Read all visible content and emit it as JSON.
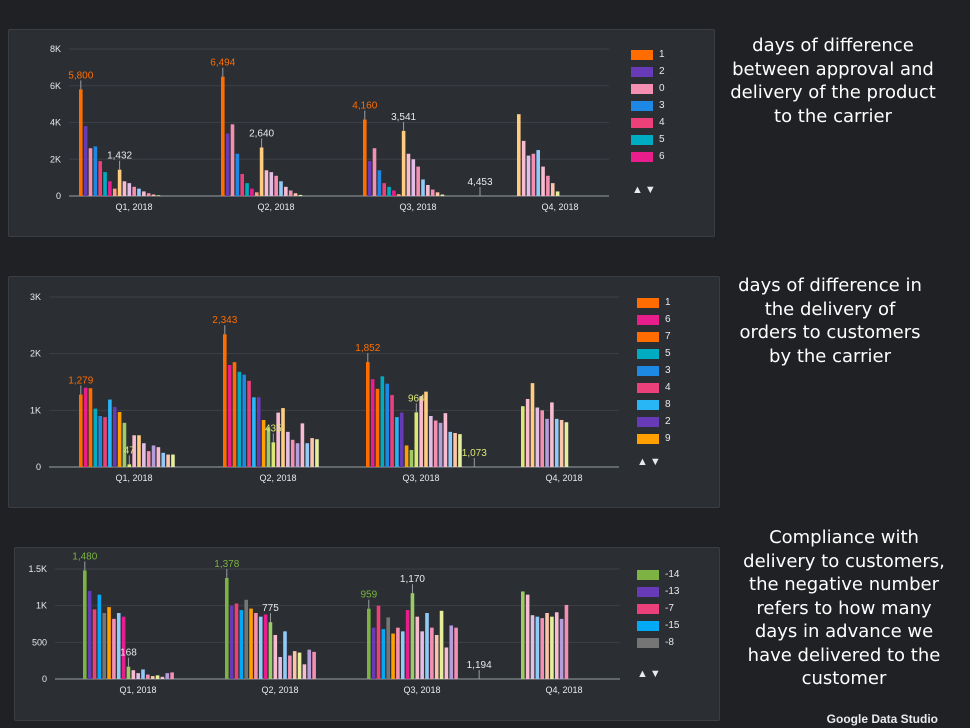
{
  "chart_data": [
    {
      "type": "bar",
      "categories": [
        "Q1, 2018",
        "Q2, 2018",
        "Q3, 2018",
        "Q4, 2018"
      ],
      "yticks": [
        "0",
        "2K",
        "4K",
        "6K",
        "8K"
      ],
      "ylim": [
        0,
        8000
      ],
      "legend_position": "right",
      "grid": true,
      "series": [
        {
          "name": "1",
          "color": "#ff6d00",
          "values": [
            5800,
            6494,
            4160,
            null
          ]
        },
        {
          "name": "2",
          "color": "#673ab7",
          "values": [
            3800,
            3400,
            1900,
            null
          ]
        },
        {
          "name": "0",
          "color": "#f48fb1",
          "values": [
            2600,
            3900,
            2600,
            null
          ]
        },
        {
          "name": "3",
          "color": "#1e88e5",
          "values": [
            2700,
            2300,
            1400,
            null
          ]
        },
        {
          "name": "4",
          "color": "#ec407a",
          "values": [
            1900,
            1200,
            700,
            null
          ]
        },
        {
          "name": "5",
          "color": "#00acc1",
          "values": [
            1300,
            700,
            500,
            null
          ]
        },
        {
          "name": "6",
          "color": "#e91e8c",
          "values": [
            800,
            400,
            300,
            null
          ]
        }
      ],
      "extra_bars": [
        {
          "color": "#ff9e80",
          "values": [
            400,
            200,
            100,
            null
          ]
        },
        {
          "color": "#ffcc80",
          "values": [
            1432,
            2640,
            3541,
            4453
          ]
        },
        {
          "color": "#f8bbd0",
          "values": [
            800,
            1400,
            2300,
            3000
          ]
        },
        {
          "color": "#e1bee7",
          "values": [
            700,
            1300,
            2000,
            2200
          ]
        },
        {
          "color": "#f48fb1",
          "values": [
            500,
            1100,
            1600,
            2300
          ]
        },
        {
          "color": "#90caf9",
          "values": [
            400,
            800,
            900,
            2500
          ]
        },
        {
          "color": "#f8bbd0",
          "values": [
            250,
            500,
            600,
            1600
          ]
        },
        {
          "color": "#f48fb1",
          "values": [
            150,
            300,
            350,
            1100
          ]
        },
        {
          "color": "#fbc4ab",
          "values": [
            80,
            150,
            200,
            700
          ]
        },
        {
          "color": "#e6ee9c",
          "values": [
            40,
            60,
            80,
            250
          ]
        }
      ],
      "data_labels": [
        {
          "text": "5,800",
          "color": "#ff6d00"
        },
        {
          "text": "1,432",
          "color": "#e8eaed"
        },
        {
          "text": "6,494",
          "color": "#ff6d00"
        },
        {
          "text": "2,640",
          "color": "#e8eaed"
        },
        {
          "text": "4,160",
          "color": "#ff6d00"
        },
        {
          "text": "3,541",
          "color": "#e8eaed"
        },
        {
          "text": "4,453",
          "color": "#e8eaed"
        }
      ]
    },
    {
      "type": "bar",
      "categories": [
        "Q1, 2018",
        "Q2, 2018",
        "Q3, 2018",
        "Q4, 2018"
      ],
      "yticks": [
        "0",
        "1K",
        "2K",
        "3K"
      ],
      "ylim": [
        0,
        3000
      ],
      "legend_position": "right",
      "grid": true,
      "series": [
        {
          "name": "1",
          "color": "#ff6d00",
          "values": [
            1279,
            2343,
            1852,
            null
          ]
        },
        {
          "name": "6",
          "color": "#e91e8c",
          "values": [
            1400,
            1800,
            1550,
            null
          ]
        },
        {
          "name": "7",
          "color": "#ff6d00",
          "values": [
            1390,
            1850,
            1380,
            null
          ]
        },
        {
          "name": "5",
          "color": "#00acc1",
          "values": [
            1030,
            1680,
            1600,
            null
          ]
        },
        {
          "name": "3",
          "color": "#1e88e5",
          "values": [
            900,
            1630,
            1470,
            null
          ]
        },
        {
          "name": "4",
          "color": "#ec407a",
          "values": [
            880,
            1520,
            1270,
            null
          ]
        },
        {
          "name": "8",
          "color": "#29b6f6",
          "values": [
            1190,
            1230,
            880,
            null
          ]
        },
        {
          "name": "2",
          "color": "#673ab7",
          "values": [
            1060,
            1230,
            960,
            null
          ]
        },
        {
          "name": "9",
          "color": "#ffa000",
          "values": [
            970,
            830,
            380,
            null
          ]
        }
      ],
      "extra_bars": [
        {
          "color": "#9ccc65",
          "values": [
            780,
            700,
            300,
            null
          ]
        },
        {
          "color": "#dce775",
          "values": [
            47,
            435,
            964,
            1073
          ]
        },
        {
          "color": "#f8bbd0",
          "values": [
            560,
            960,
            1250,
            1200
          ]
        },
        {
          "color": "#ffcc80",
          "values": [
            560,
            1040,
            1330,
            1480
          ]
        },
        {
          "color": "#e1bee7",
          "values": [
            420,
            620,
            900,
            1050
          ]
        },
        {
          "color": "#f48fb1",
          "values": [
            280,
            480,
            820,
            1000
          ]
        },
        {
          "color": "#b39ddb",
          "values": [
            380,
            420,
            780,
            850
          ]
        },
        {
          "color": "#f8bbd0",
          "values": [
            350,
            770,
            950,
            1140
          ]
        },
        {
          "color": "#90caf9",
          "values": [
            250,
            420,
            620,
            850
          ]
        },
        {
          "color": "#fbc4ab",
          "values": [
            220,
            510,
            600,
            830
          ]
        },
        {
          "color": "#e6ee9c",
          "values": [
            220,
            490,
            580,
            790
          ]
        }
      ],
      "data_labels": [
        {
          "text": "1,279",
          "color": "#ff6d00"
        },
        {
          "text": "47",
          "color": "#dce775"
        },
        {
          "text": "2,343",
          "color": "#ff6d00"
        },
        {
          "text": "435",
          "color": "#dce775"
        },
        {
          "text": "1,852",
          "color": "#ff6d00"
        },
        {
          "text": "964",
          "color": "#dce775"
        },
        {
          "text": "1,073",
          "color": "#dce775"
        }
      ]
    },
    {
      "type": "bar",
      "categories": [
        "Q1, 2018",
        "Q2, 2018",
        "Q3, 2018",
        "Q4, 2018"
      ],
      "yticks": [
        "0",
        "500",
        "1K",
        "1.5K"
      ],
      "ylim": [
        0,
        1500
      ],
      "legend_position": "right",
      "grid": true,
      "series": [
        {
          "name": "-14",
          "color": "#7cb342",
          "values": [
            1480,
            1378,
            959,
            null
          ]
        },
        {
          "name": "-13",
          "color": "#673ab7",
          "values": [
            1200,
            1000,
            700,
            null
          ]
        },
        {
          "name": "-7",
          "color": "#ec407a",
          "values": [
            950,
            1030,
            1000,
            null
          ]
        },
        {
          "name": "-15",
          "color": "#03a9f4",
          "values": [
            1150,
            940,
            680,
            null
          ]
        },
        {
          "name": "-8",
          "color": "#757575",
          "values": [
            900,
            1080,
            840,
            null
          ]
        }
      ],
      "extra_bars": [
        {
          "color": "#ffa000",
          "values": [
            980,
            960,
            620,
            null
          ]
        },
        {
          "color": "#f48fb1",
          "values": [
            820,
            900,
            700,
            null
          ]
        },
        {
          "color": "#90caf9",
          "values": [
            900,
            850,
            650,
            null
          ]
        },
        {
          "color": "#e91e8c",
          "values": [
            850,
            880,
            940,
            null
          ]
        },
        {
          "color": "#9ccc65",
          "values": [
            168,
            775,
            1170,
            1194
          ]
        },
        {
          "color": "#f8bbd0",
          "values": [
            120,
            600,
            850,
            1150
          ]
        },
        {
          "color": "#e1bee7",
          "values": [
            80,
            300,
            650,
            870
          ]
        },
        {
          "color": "#90caf9",
          "values": [
            130,
            650,
            900,
            850
          ]
        },
        {
          "color": "#f48fb1",
          "values": [
            60,
            320,
            700,
            830
          ]
        },
        {
          "color": "#fbc4ab",
          "values": [
            40,
            380,
            600,
            900
          ]
        },
        {
          "color": "#e6ee9c",
          "values": [
            50,
            360,
            930,
            850
          ]
        },
        {
          "color": "#f8bbd0",
          "values": [
            30,
            200,
            430,
            910
          ]
        },
        {
          "color": "#b39ddb",
          "values": [
            80,
            400,
            730,
            820
          ]
        },
        {
          "color": "#f48fb1",
          "values": [
            90,
            370,
            700,
            1010
          ]
        }
      ],
      "data_labels": [
        {
          "text": "1,480",
          "color": "#7cb342"
        },
        {
          "text": "168",
          "color": "#e8eaed"
        },
        {
          "text": "1,378",
          "color": "#7cb342"
        },
        {
          "text": "775",
          "color": "#e8eaed"
        },
        {
          "text": "959",
          "color": "#7cb342"
        },
        {
          "text": "1,170",
          "color": "#e8eaed"
        },
        {
          "text": "1,194",
          "color": "#e8eaed"
        }
      ]
    }
  ],
  "sort_arrows": "▲▼",
  "descriptions": [
    "days of difference between approval and delivery of the product to the carrier",
    "days of difference in the delivery of orders to customers by the carrier",
    "Compliance with delivery to customers, the negative number refers to how many days in advance we have delivered to the customer"
  ],
  "footer": "Google Data Studio"
}
